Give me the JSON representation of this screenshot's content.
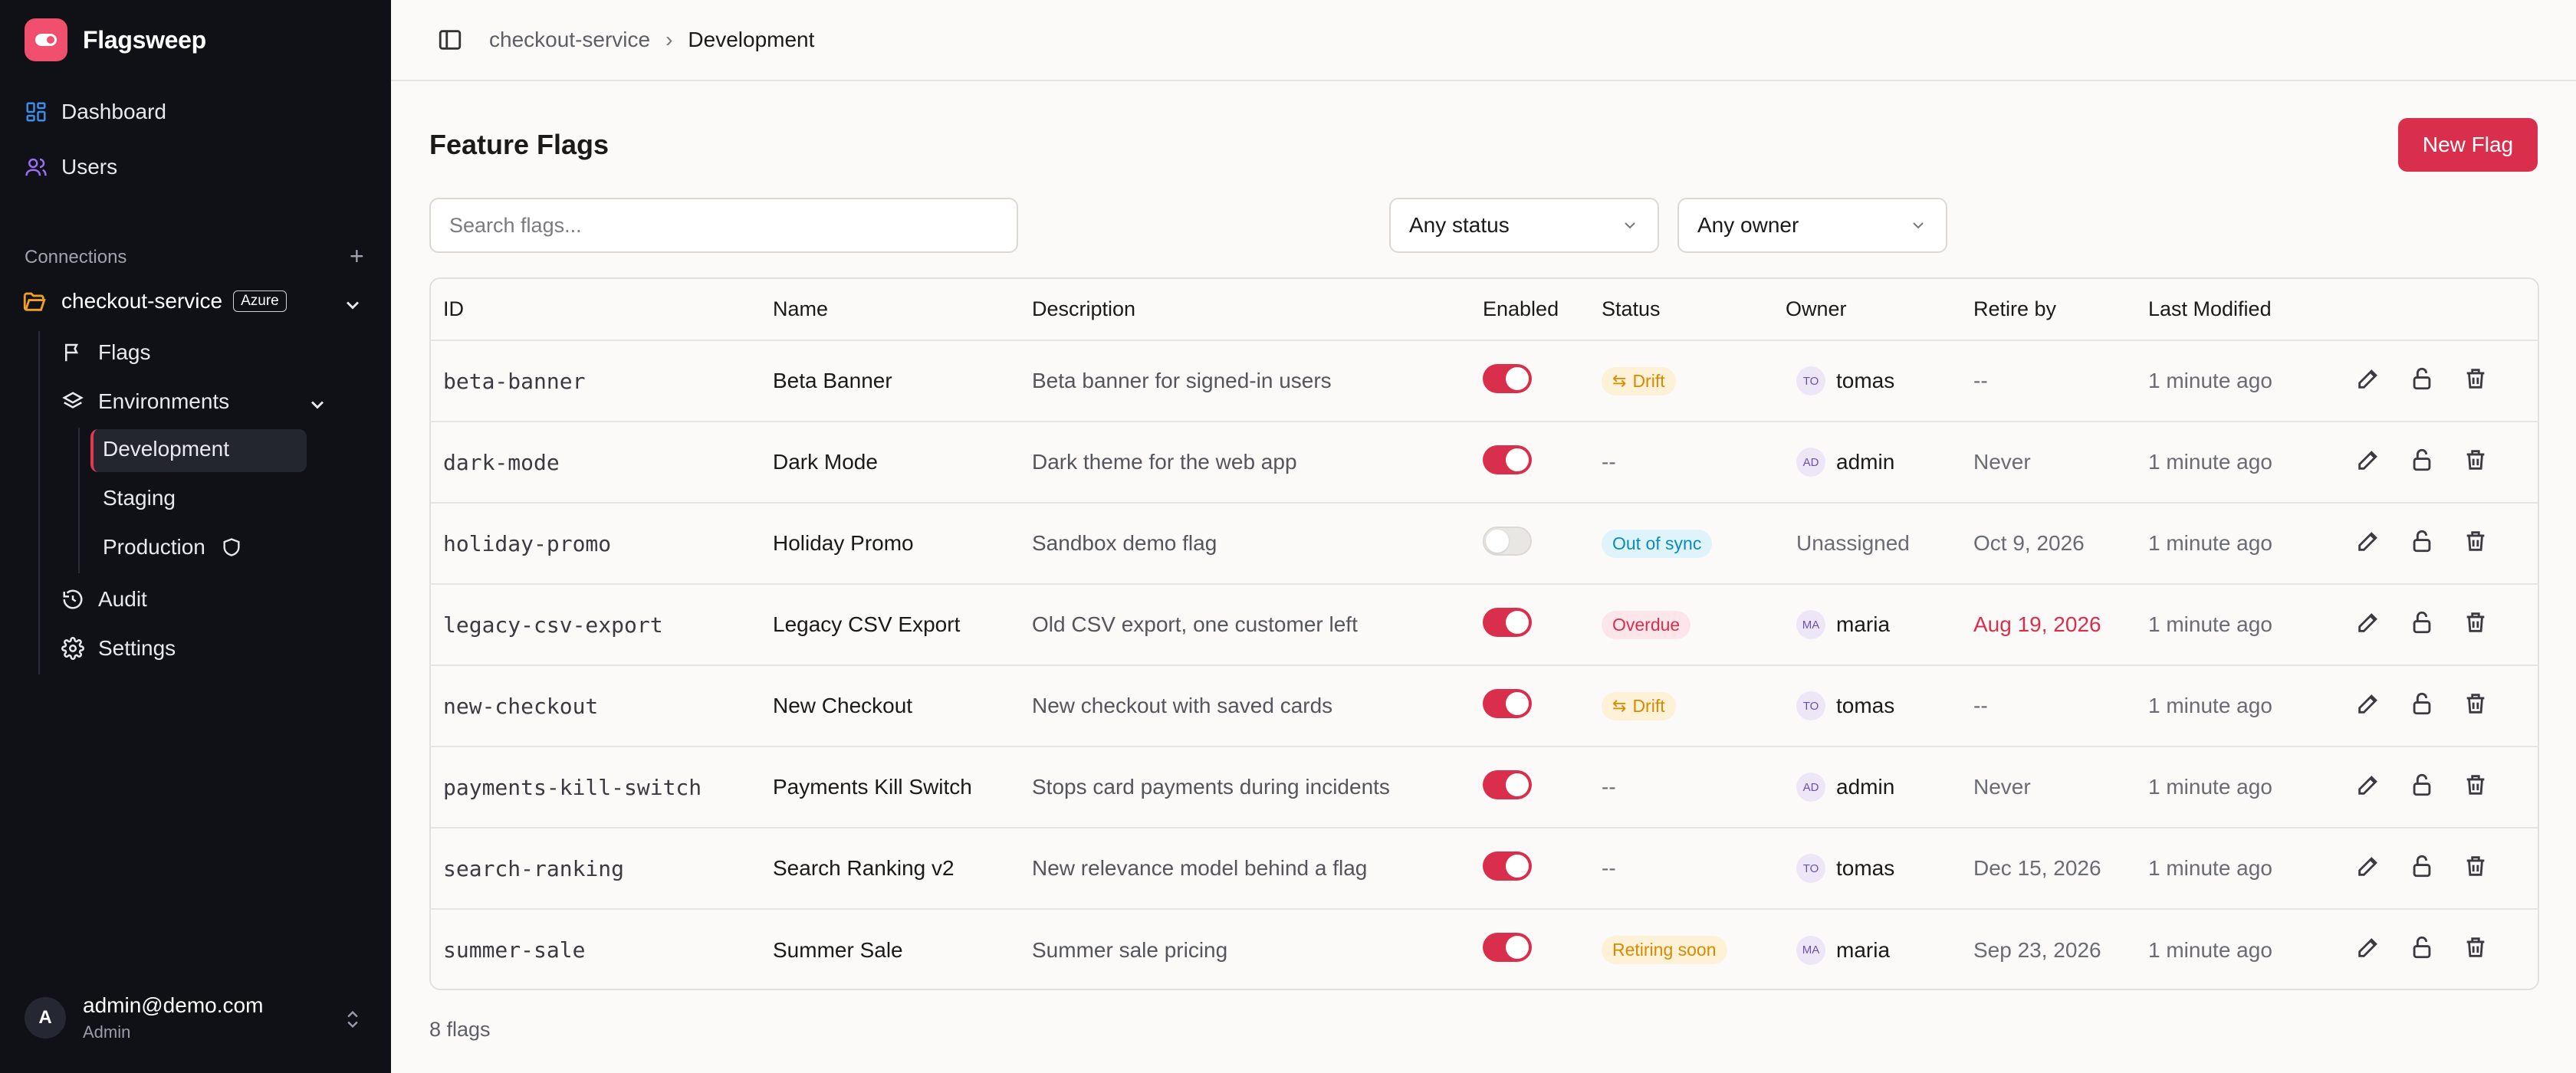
{
  "brand": {
    "name": "Flagsweep"
  },
  "nav": [
    {
      "label": "Dashboard",
      "icon": "dashboard-icon"
    },
    {
      "label": "Users",
      "icon": "users-icon"
    }
  ],
  "connections": {
    "label": "Connections",
    "connection": {
      "name": "checkout-service",
      "badge": "Azure"
    },
    "items": {
      "flags": "Flags",
      "environments": "Environments",
      "audit": "Audit",
      "settings": "Settings"
    },
    "environments": [
      "Development",
      "Staging",
      "Production"
    ]
  },
  "user": {
    "email": "admin@demo.com",
    "role": "Admin",
    "initial": "A"
  },
  "breadcrumb": {
    "parent": "checkout-service",
    "current": "Development"
  },
  "page": {
    "title": "Feature Flags",
    "new_button": "New Flag"
  },
  "filters": {
    "search_placeholder": "Search flags...",
    "status": "Any status",
    "owner": "Any owner"
  },
  "table": {
    "headers": [
      "ID",
      "Name",
      "Description",
      "Enabled",
      "Status",
      "Owner",
      "Retire by",
      "Last Modified"
    ],
    "rows": [
      {
        "id": "beta-banner",
        "name": "Beta Banner",
        "description": "Beta banner for signed-in users",
        "enabled": true,
        "status": "Drift",
        "status_kind": "drift",
        "owner_initials": "TO",
        "owner": "tomas",
        "retire_by": "--",
        "retire_kind": "muted",
        "modified": "1 minute ago"
      },
      {
        "id": "dark-mode",
        "name": "Dark Mode",
        "description": "Dark theme for the web app",
        "enabled": true,
        "status": "--",
        "status_kind": "none",
        "owner_initials": "AD",
        "owner": "admin",
        "retire_by": "Never",
        "retire_kind": "muted",
        "modified": "1 minute ago"
      },
      {
        "id": "holiday-promo",
        "name": "Holiday Promo",
        "description": "Sandbox demo flag",
        "enabled": false,
        "status": "Out of sync",
        "status_kind": "sync",
        "owner_initials": "",
        "owner": "Unassigned",
        "retire_by": "Oct 9, 2026",
        "retire_kind": "muted",
        "modified": "1 minute ago"
      },
      {
        "id": "legacy-csv-export",
        "name": "Legacy CSV Export",
        "description": "Old CSV export, one customer left",
        "enabled": true,
        "status": "Overdue",
        "status_kind": "overdue",
        "owner_initials": "MA",
        "owner": "maria",
        "retire_by": "Aug 19, 2026",
        "retire_kind": "overdue",
        "modified": "1 minute ago"
      },
      {
        "id": "new-checkout",
        "name": "New Checkout",
        "description": "New checkout with saved cards",
        "enabled": true,
        "status": "Drift",
        "status_kind": "drift",
        "owner_initials": "TO",
        "owner": "tomas",
        "retire_by": "--",
        "retire_kind": "muted",
        "modified": "1 minute ago"
      },
      {
        "id": "payments-kill-switch",
        "name": "Payments Kill Switch",
        "description": "Stops card payments during incidents",
        "enabled": true,
        "status": "--",
        "status_kind": "none",
        "owner_initials": "AD",
        "owner": "admin",
        "retire_by": "Never",
        "retire_kind": "muted",
        "modified": "1 minute ago"
      },
      {
        "id": "search-ranking",
        "name": "Search Ranking v2",
        "description": "New relevance model behind a flag",
        "enabled": true,
        "status": "--",
        "status_kind": "none",
        "owner_initials": "TO",
        "owner": "tomas",
        "retire_by": "Dec 15, 2026",
        "retire_kind": "muted",
        "modified": "1 minute ago"
      },
      {
        "id": "summer-sale",
        "name": "Summer Sale",
        "description": "Summer sale pricing",
        "enabled": true,
        "status": "Retiring soon",
        "status_kind": "retiring",
        "owner_initials": "MA",
        "owner": "maria",
        "retire_by": "Sep 23, 2026",
        "retire_kind": "muted",
        "modified": "1 minute ago"
      }
    ]
  },
  "footer": {
    "count": "8 flags"
  },
  "colors": {
    "accent": "#d92f4c",
    "sidebar_bg": "#0f1117",
    "brand": "#f0506e"
  }
}
